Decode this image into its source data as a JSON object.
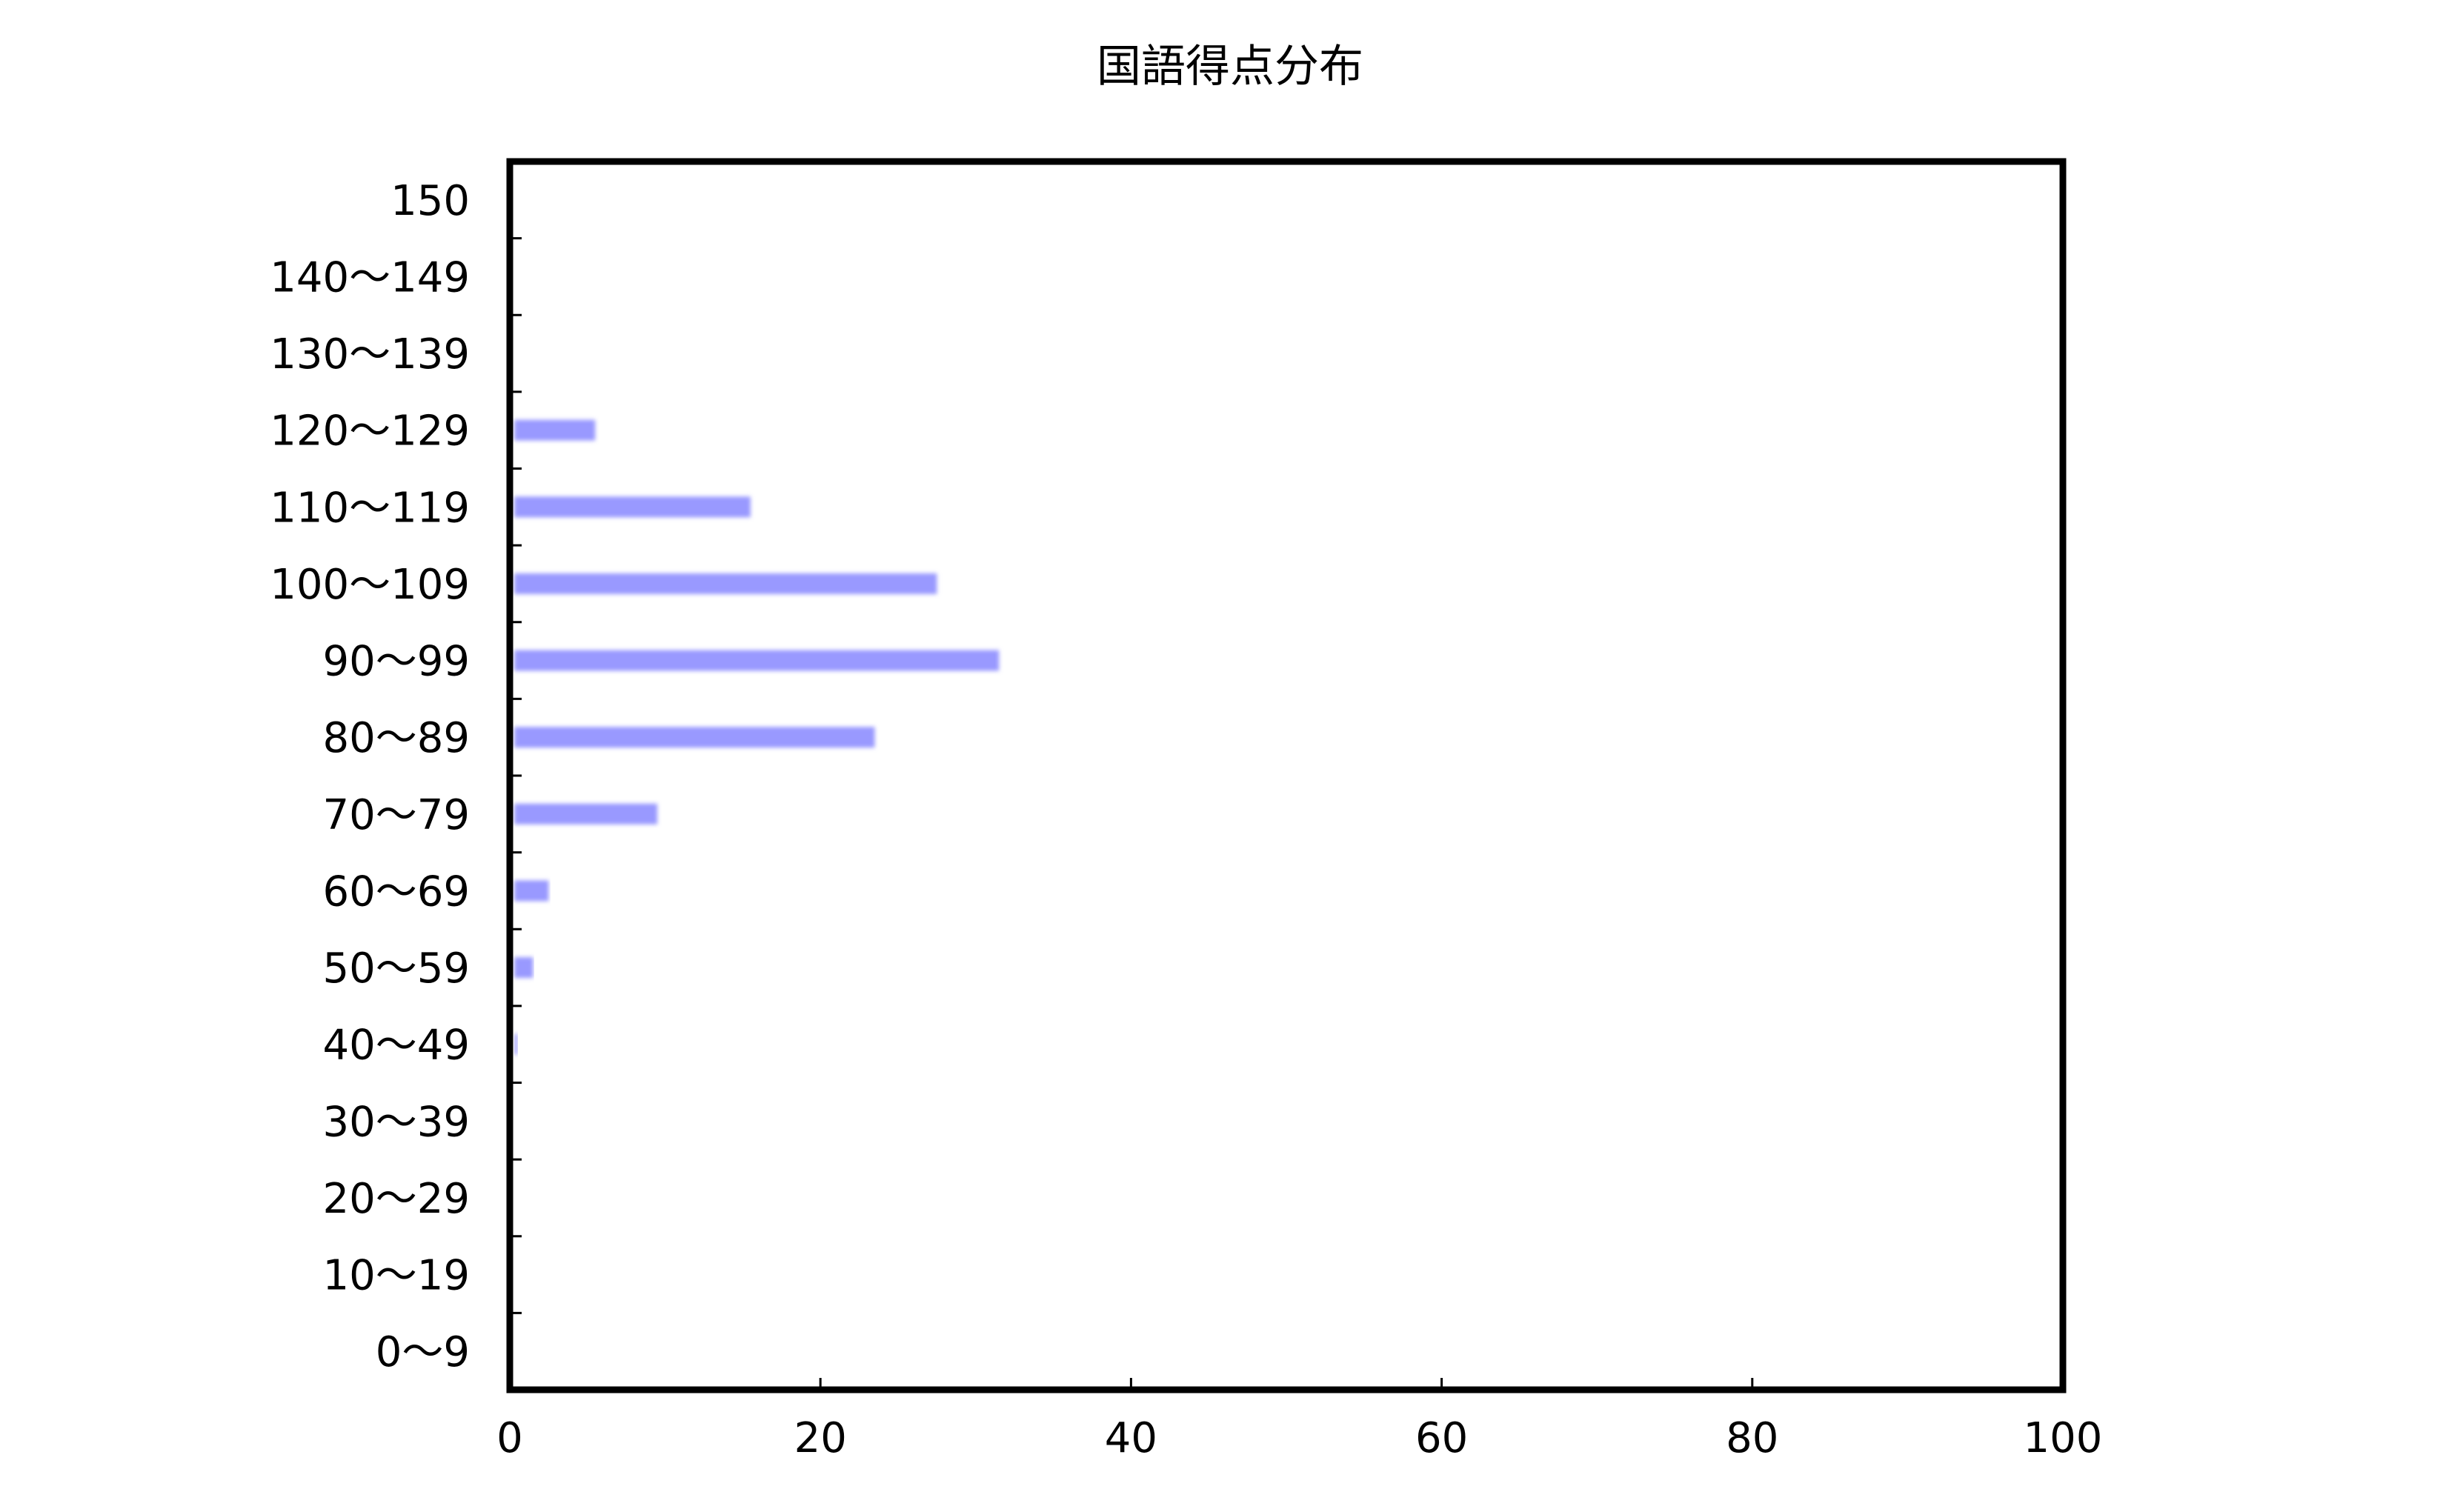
{
  "chart_data": {
    "type": "bar",
    "orientation": "horizontal",
    "title": "国語得点分布",
    "xlabel": "",
    "ylabel": "",
    "xlim": [
      0,
      100
    ],
    "x_ticks": [
      "0",
      "20",
      "40",
      "60",
      "80",
      "100"
    ],
    "categories": [
      "0～9",
      "10～19",
      "20～29",
      "30～39",
      "40～49",
      "50～59",
      "60～69",
      "70～79",
      "80～89",
      "90～99",
      "100～109",
      "110～119",
      "120～129",
      "130～139",
      "140～149",
      "150"
    ],
    "values": [
      0,
      0,
      0,
      0,
      0.5,
      1.5,
      2.5,
      9.5,
      23.5,
      31.5,
      27.5,
      15.5,
      5.5,
      0,
      0,
      0
    ],
    "grid": false,
    "legend": "none",
    "bar_color": "#9999ff"
  }
}
